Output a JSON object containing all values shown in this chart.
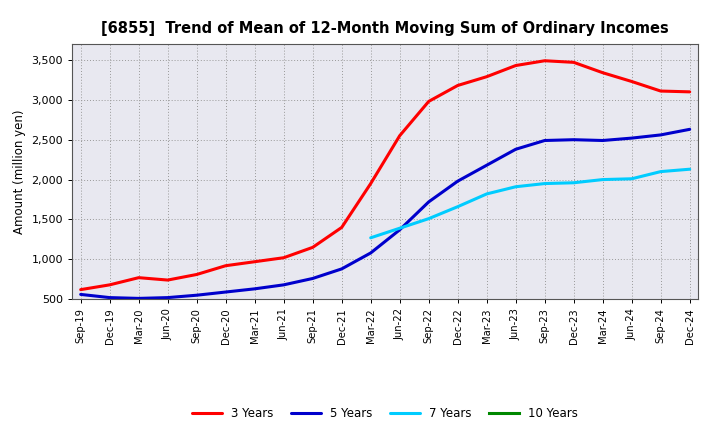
{
  "title": "[6855]  Trend of Mean of 12-Month Moving Sum of Ordinary Incomes",
  "ylabel": "Amount (million yen)",
  "bg_color": "#FFFFFF",
  "plot_bg_color": "#E8E8F0",
  "grid_color": "#999999",
  "x_labels": [
    "Sep-19",
    "Dec-19",
    "Mar-20",
    "Jun-20",
    "Sep-20",
    "Dec-20",
    "Mar-21",
    "Jun-21",
    "Sep-21",
    "Dec-21",
    "Mar-22",
    "Jun-22",
    "Sep-22",
    "Dec-22",
    "Mar-23",
    "Jun-23",
    "Sep-23",
    "Dec-23",
    "Mar-24",
    "Jun-24",
    "Sep-24",
    "Dec-24"
  ],
  "series": {
    "3 Years": {
      "color": "#FF0000",
      "data_x": [
        0,
        1,
        2,
        3,
        4,
        5,
        6,
        7,
        8,
        9,
        10,
        11,
        12,
        13,
        14,
        15,
        16,
        17,
        18,
        19,
        20,
        21
      ],
      "data_y": [
        620,
        680,
        770,
        740,
        810,
        920,
        970,
        1020,
        1150,
        1400,
        1950,
        2550,
        2980,
        3180,
        3290,
        3430,
        3490,
        3470,
        3340,
        3230,
        3110,
        3100
      ]
    },
    "5 Years": {
      "color": "#0000CC",
      "data_x": [
        0,
        1,
        2,
        3,
        4,
        5,
        6,
        7,
        8,
        9,
        10,
        11,
        12,
        13,
        14,
        15,
        16,
        17,
        18,
        19,
        20,
        21
      ],
      "data_y": [
        560,
        520,
        510,
        520,
        550,
        590,
        630,
        680,
        760,
        880,
        1080,
        1370,
        1720,
        1980,
        2180,
        2380,
        2490,
        2500,
        2490,
        2520,
        2560,
        2630
      ]
    },
    "7 Years": {
      "color": "#00CCFF",
      "data_x": [
        10,
        11,
        12,
        13,
        14,
        15,
        16,
        17,
        18,
        19,
        20,
        21
      ],
      "data_y": [
        1270,
        1390,
        1510,
        1660,
        1820,
        1910,
        1950,
        1960,
        2000,
        2010,
        2100,
        2130
      ]
    },
    "10 Years": {
      "color": "#008800",
      "data_x": [],
      "data_y": []
    }
  },
  "ylim": [
    500,
    3700
  ],
  "yticks": [
    500,
    1000,
    1500,
    2000,
    2500,
    3000,
    3500
  ],
  "ytick_labels": [
    "500",
    "1,000",
    "1,500",
    "2,000",
    "2,500",
    "3,000",
    "3,500"
  ],
  "linewidth": 2.2
}
